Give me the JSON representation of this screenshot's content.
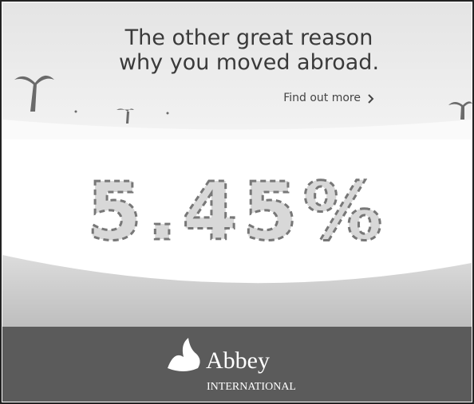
{
  "headline": {
    "lines": [
      "The other great reason",
      "why you moved abroad."
    ]
  },
  "cta": "Find out more",
  "rate": "5.45%",
  "brand": {
    "name": "Abbey",
    "subtitle": "INTERNATIONAL"
  }
}
